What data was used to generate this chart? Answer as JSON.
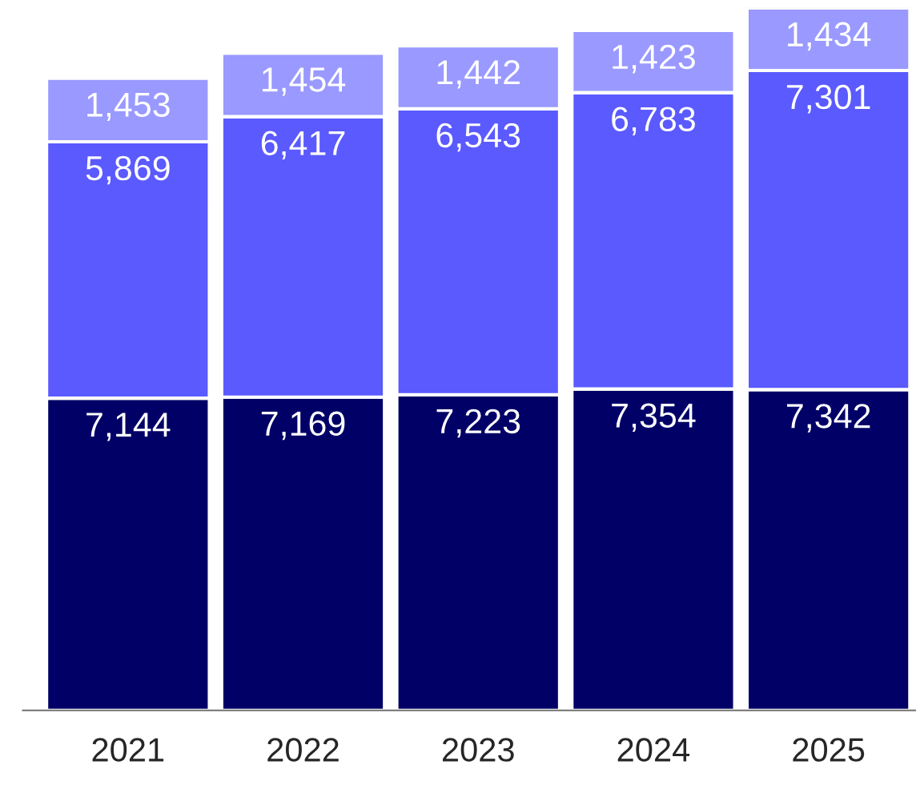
{
  "chart_data": {
    "type": "bar",
    "stacked": true,
    "grid": false,
    "legend": false,
    "categories": [
      "2021",
      "2022",
      "2023",
      "2024",
      "2025"
    ],
    "series": [
      {
        "color": "#000066",
        "values": [
          7144,
          7169,
          7223,
          7354,
          7342
        ],
        "value_labels": [
          "7,144",
          "7,169",
          "7,223",
          "7,354",
          "7,342"
        ]
      },
      {
        "color": "#5a5aff",
        "values": [
          5869,
          6417,
          6543,
          6783,
          7301
        ],
        "value_labels": [
          "5,869",
          "6,417",
          "6,543",
          "6,783",
          "7,301"
        ]
      },
      {
        "color": "#9999ff",
        "values": [
          1453,
          1454,
          1442,
          1423,
          1434
        ],
        "value_labels": [
          "1,453",
          "1,454",
          "1,442",
          "1,423",
          "1,434"
        ]
      }
    ]
  }
}
